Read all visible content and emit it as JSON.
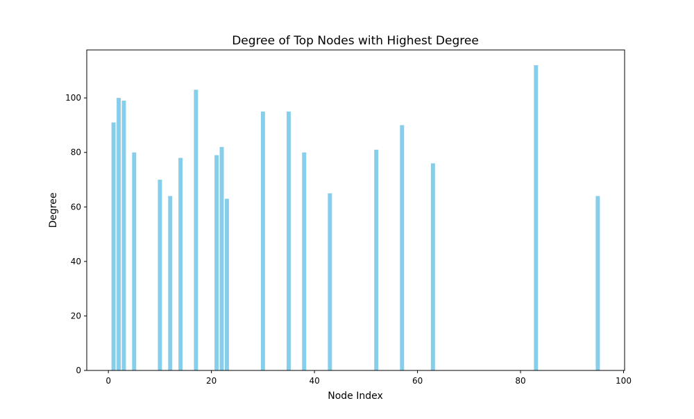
{
  "chart_data": {
    "type": "bar",
    "title": "Degree of Top Nodes with Highest Degree",
    "xlabel": "Node Index",
    "ylabel": "Degree",
    "x": [
      1,
      2,
      3,
      5,
      10,
      12,
      14,
      17,
      21,
      22,
      23,
      30,
      35,
      38,
      43,
      52,
      57,
      63,
      83,
      95
    ],
    "values": [
      91,
      100,
      99,
      80,
      70,
      64,
      78,
      103,
      79,
      82,
      63,
      95,
      95,
      80,
      65,
      81,
      90,
      76,
      112,
      64
    ],
    "xlim": [
      -4.2,
      100.2
    ],
    "ylim": [
      0,
      117.6
    ],
    "xticks": [
      0,
      20,
      40,
      60,
      80,
      100
    ],
    "yticks": [
      0,
      20,
      40,
      60,
      80,
      100
    ],
    "bar_color": "#87CEEB",
    "grid": false,
    "legend": "none"
  }
}
